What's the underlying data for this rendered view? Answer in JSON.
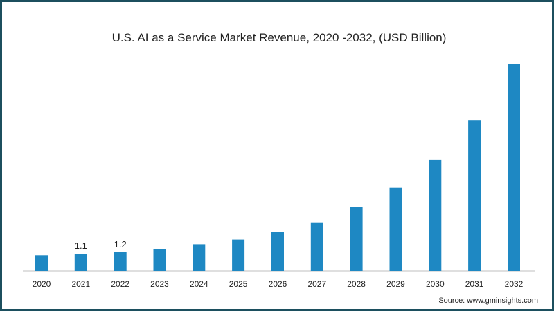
{
  "chart_data": {
    "type": "bar",
    "title": "U.S. AI as a Service Market Revenue, 2020 -2032, (USD Billion)",
    "xlabel": "",
    "ylabel": "",
    "categories": [
      "2020",
      "2021",
      "2022",
      "2023",
      "2024",
      "2025",
      "2026",
      "2027",
      "2028",
      "2029",
      "2030",
      "2031",
      "2032"
    ],
    "values": [
      1.0,
      1.1,
      1.2,
      1.4,
      1.7,
      2.0,
      2.5,
      3.1,
      4.1,
      5.3,
      7.1,
      9.6,
      13.2
    ],
    "data_labels": [
      "",
      "1.1",
      "1.2",
      "",
      "",
      "",
      "",
      "",
      "",
      "",
      "",
      "",
      ""
    ],
    "ylim": [
      0,
      14.5
    ],
    "grid": false,
    "bar_color": "#1e88c3"
  },
  "source": "Source: www.gminsights.com",
  "frame_color": "#1c4f5e"
}
